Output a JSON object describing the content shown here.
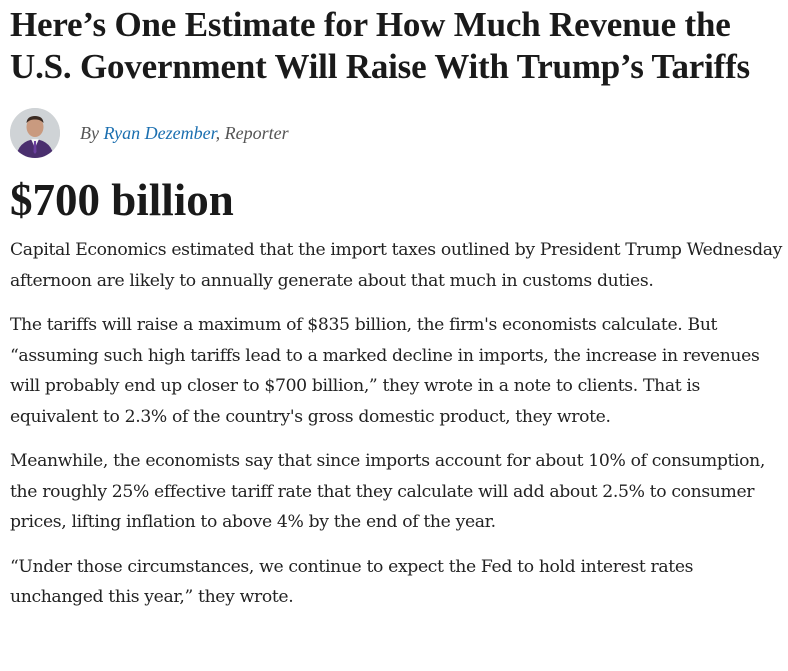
{
  "article": {
    "headline_line1": "Here’s One Estimate for How Much Revenue the",
    "headline_line2": "U.S. Government Will Raise With Trump’s Tariffs",
    "byline": {
      "prefix": "By ",
      "author": "Ryan Dezember",
      "role": ", Reporter"
    },
    "big_number": "$700 billion",
    "paragraphs": [
      "Capital Economics estimated that the import taxes outlined by President Trump Wednesday afternoon are likely to annually generate about that much in customs duties.",
      "The tariffs will raise a maximum of $835 billion, the firm's economists calculate. But “assuming such high tariffs lead to a marked decline in imports, the increase in revenues will probably end up closer to $700 billion,” they wrote in a note to clients. That is equivalent to 2.3% of the country's gross domestic product, they wrote.",
      "Meanwhile, the economists say that since imports account for about 10% of consumption, the roughly 25% effective tariff rate that they calculate will add about 2.5% to consumer prices, lifting inflation to above 4% by the end of the year.",
      "“Under those circumstances, we continue to expect the Fed to hold interest rates unchanged this year,” they wrote."
    ]
  },
  "colors": {
    "author_link": "#1b6fb0",
    "text": "#222222",
    "byline_text": "#555555"
  }
}
